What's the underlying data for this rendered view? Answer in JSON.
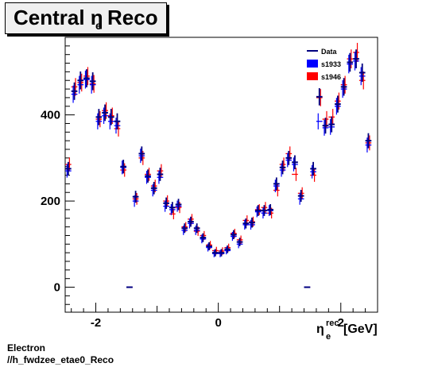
{
  "title": {
    "main": "Central  η",
    "sub": "e",
    "rest": "Reco"
  },
  "footer": {
    "line1": "Electron",
    "line2": "//h_fwdzee_etae0_Reco"
  },
  "chart_data": {
    "type": "scatter",
    "xlabel": "η",
    "xlabel_sub": "e",
    "xlabel_sup": "rec",
    "xlabel_unit": "[GeV]",
    "xlim": [
      -2.5,
      2.6
    ],
    "ylim": [
      -58,
      580
    ],
    "x_ticks": [
      -2,
      0,
      2
    ],
    "y_ticks": [
      0,
      200,
      400
    ],
    "x_tick_labels": [
      "-2",
      "0",
      "2"
    ],
    "y_tick_labels": [
      "0",
      "200",
      "400"
    ],
    "grid": false,
    "legend_placement": "top-right",
    "colors": {
      "Data": "#000080",
      "s1933": "#0000ff",
      "s1946": "#ff0000"
    },
    "series": [
      {
        "name": "Data",
        "style": "errorbar",
        "x": [
          -2.45,
          -2.35,
          -2.25,
          -2.15,
          -2.05,
          -1.95,
          -1.85,
          -1.75,
          -1.65,
          -1.55,
          -1.45,
          -1.35,
          -1.25,
          -1.15,
          -1.05,
          -0.95,
          -0.85,
          -0.75,
          -0.65,
          -0.55,
          -0.45,
          -0.35,
          -0.25,
          -0.15,
          -0.05,
          0.05,
          0.15,
          0.25,
          0.35,
          0.45,
          0.55,
          0.65,
          0.75,
          0.85,
          0.95,
          1.05,
          1.15,
          1.25,
          1.35,
          1.45,
          1.55,
          1.65,
          1.75,
          1.85,
          1.95,
          2.05,
          2.15,
          2.25,
          2.35,
          2.45
        ],
        "y": [
          275,
          455,
          480,
          485,
          478,
          395,
          405,
          395,
          385,
          280,
          0,
          210,
          310,
          258,
          230,
          262,
          195,
          185,
          192,
          137,
          152,
          137,
          115,
          95,
          80,
          80,
          88,
          122,
          105,
          148,
          150,
          178,
          178,
          180,
          240,
          278,
          300,
          290,
          212,
          0,
          275,
          442,
          375,
          378,
          425,
          465,
          522,
          530,
          498,
          340
        ]
      },
      {
        "name": "s1933",
        "style": "errorbar",
        "x": [
          -2.45,
          -2.35,
          -2.25,
          -2.15,
          -2.05,
          -1.95,
          -1.85,
          -1.75,
          -1.65,
          -1.55,
          -1.45,
          -1.35,
          -1.25,
          -1.15,
          -1.05,
          -0.95,
          -0.85,
          -0.75,
          -0.65,
          -0.55,
          -0.45,
          -0.35,
          -0.25,
          -0.15,
          -0.05,
          0.05,
          0.15,
          0.25,
          0.35,
          0.45,
          0.55,
          0.65,
          0.75,
          0.85,
          0.95,
          1.05,
          1.15,
          1.25,
          1.35,
          1.45,
          1.55,
          1.65,
          1.75,
          1.85,
          1.95,
          2.05,
          2.15,
          2.25,
          2.35,
          2.45
        ],
        "y": [
          270,
          448,
          470,
          482,
          470,
          385,
          398,
          385,
          375,
          278,
          0,
          200,
          305,
          255,
          225,
          255,
          188,
          180,
          188,
          132,
          148,
          132,
          112,
          92,
          78,
          78,
          85,
          118,
          100,
          145,
          145,
          175,
          172,
          178,
          235,
          272,
          295,
          285,
          205,
          0,
          268,
          385,
          370,
          372,
          420,
          460,
          518,
          525,
          490,
          330
        ]
      },
      {
        "name": "s1946",
        "style": "errorbar",
        "x": [
          -2.45,
          -2.35,
          -2.25,
          -2.15,
          -2.05,
          -1.95,
          -1.85,
          -1.75,
          -1.65,
          -1.55,
          -1.45,
          -1.35,
          -1.25,
          -1.15,
          -1.05,
          -0.95,
          -0.85,
          -0.75,
          -0.65,
          -0.55,
          -0.45,
          -0.35,
          -0.25,
          -0.15,
          -0.05,
          0.05,
          0.15,
          0.25,
          0.35,
          0.45,
          0.55,
          0.65,
          0.75,
          0.85,
          0.95,
          1.05,
          1.15,
          1.25,
          1.35,
          1.45,
          1.55,
          1.65,
          1.75,
          1.85,
          1.95,
          2.05,
          2.15,
          2.25,
          2.35,
          2.45
        ],
        "y": [
          285,
          465,
          475,
          490,
          472,
          390,
          410,
          398,
          368,
          272,
          0,
          205,
          300,
          262,
          235,
          270,
          200,
          170,
          185,
          140,
          158,
          130,
          120,
          98,
          85,
          84,
          92,
          125,
          110,
          155,
          152,
          180,
          185,
          172,
          225,
          285,
          310,
          262,
          218,
          0,
          260,
          440,
          390,
          395,
          432,
          470,
          530,
          545,
          480,
          335
        ]
      }
    ]
  }
}
